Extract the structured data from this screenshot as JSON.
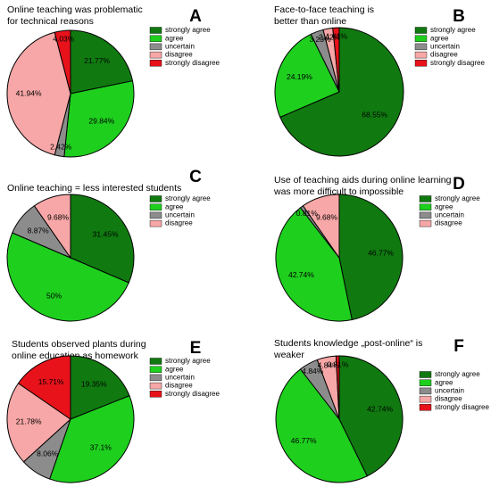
{
  "chart_data": [
    {
      "type": "pie",
      "letter": "A",
      "title_lines": [
        "Online teaching was problematic",
        "for technical  reasons"
      ],
      "slices": [
        {
          "label": "strongly agree",
          "value": 21.77,
          "value_label": "21.77%",
          "color": "#107a10"
        },
        {
          "label": "agree",
          "value": 29.84,
          "value_label": "29.84%",
          "color": "#1ecf1e"
        },
        {
          "label": "uncertain",
          "value": 2.42,
          "value_label": "2.42%",
          "color": "#8c8c8c"
        },
        {
          "label": "disagree",
          "value": 41.94,
          "value_label": "41.94%",
          "color": "#f7a7a7"
        },
        {
          "label": "strongly disagree",
          "value": 4.03,
          "value_label": "4.03%",
          "color": "#e8121a"
        }
      ],
      "legend": [
        "strongly agree",
        "agree",
        "uncertain",
        "disagree",
        "strongly disagree"
      ]
    },
    {
      "type": "pie",
      "letter": "B",
      "title_lines": [
        "Face-to-face teaching is",
        "better than online"
      ],
      "slices": [
        {
          "label": "strongly agree",
          "value": 68.55,
          "value_label": "68.55%",
          "color": "#107a10"
        },
        {
          "label": "agree",
          "value": 24.19,
          "value_label": "24.19%",
          "color": "#1ecf1e"
        },
        {
          "label": "uncertain",
          "value": 3.23,
          "value_label": "3.23%",
          "color": "#8c8c8c"
        },
        {
          "label": "disagree",
          "value": 2.42,
          "value_label": "2.42%",
          "color": "#f7a7a7"
        },
        {
          "label": "strongly disagree",
          "value": 1.61,
          "value_label": "1.61%",
          "color": "#e8121a"
        }
      ],
      "legend": [
        "strongly agree",
        "agree",
        "uncertain",
        "disagree",
        "strongly disagree"
      ]
    },
    {
      "type": "pie",
      "letter": "C",
      "title_lines": [
        "Online teaching = less interested students"
      ],
      "slices": [
        {
          "label": "strongly agree",
          "value": 31.45,
          "value_label": "31.45%",
          "color": "#107a10"
        },
        {
          "label": "agree",
          "value": 50,
          "value_label": "50%",
          "color": "#1ecf1e"
        },
        {
          "label": "uncertain",
          "value": 8.87,
          "value_label": "8.87%",
          "color": "#8c8c8c"
        },
        {
          "label": "disagree",
          "value": 9.68,
          "value_label": "9.68%",
          "color": "#f7a7a7"
        }
      ],
      "legend": [
        "strongly agree",
        "agree",
        "uncertain",
        "disagree"
      ]
    },
    {
      "type": "pie",
      "letter": "D",
      "title_lines": [
        "Use of teaching aids during online learning",
        "was more difficult to impossible"
      ],
      "slices": [
        {
          "label": "strongly agree",
          "value": 46.77,
          "value_label": "46.77%",
          "color": "#107a10"
        },
        {
          "label": "agree",
          "value": 42.74,
          "value_label": "42.74%",
          "color": "#1ecf1e"
        },
        {
          "label": "uncertain",
          "value": 0.81,
          "value_label": "0.81%",
          "color": "#8c8c8c"
        },
        {
          "label": "disagree",
          "value": 9.68,
          "value_label": "9.68%",
          "color": "#f7a7a7"
        }
      ],
      "legend": [
        "strongly agree",
        "agree",
        "uncertain",
        "disagree"
      ]
    },
    {
      "type": "pie",
      "letter": "E",
      "title_lines": [
        "Students observed plants during",
        "online education as homework"
      ],
      "slices": [
        {
          "label": "strongly agree",
          "value": 19.35,
          "value_label": "19.35%",
          "color": "#107a10"
        },
        {
          "label": "agree",
          "value": 37.1,
          "value_label": "37.1%",
          "color": "#1ecf1e"
        },
        {
          "label": "uncertain",
          "value": 8.06,
          "value_label": "8.06%",
          "color": "#8c8c8c"
        },
        {
          "label": "disagree",
          "value": 21.78,
          "value_label": "21.78%",
          "color": "#f7a7a7"
        },
        {
          "label": "strongly disagree",
          "value": 15.71,
          "value_label": "15.71%",
          "color": "#e8121a"
        }
      ],
      "legend": [
        "strongly agree",
        "agree",
        "uncertain",
        "disagree",
        "strongly disagree"
      ]
    },
    {
      "type": "pie",
      "letter": "F",
      "title_lines": [
        "Students knowledge „post-online“ is",
        "weaker"
      ],
      "slices": [
        {
          "label": "strongly agree",
          "value": 42.74,
          "value_label": "42.74%",
          "color": "#107a10"
        },
        {
          "label": "agree",
          "value": 46.77,
          "value_label": "46.77%",
          "color": "#1ecf1e"
        },
        {
          "label": "uncertain",
          "value": 4.84,
          "value_label": "4.84%",
          "color": "#8c8c8c"
        },
        {
          "label": "disagree",
          "value": 4.84,
          "value_label": "4.84%",
          "color": "#f7a7a7"
        },
        {
          "label": "strongly disagree",
          "value": 0.81,
          "value_label": "0.81%",
          "color": "#e8121a"
        }
      ],
      "legend": [
        "strongly agree",
        "agree",
        "uncertain",
        "disagree",
        "strongly disagree"
      ]
    }
  ]
}
